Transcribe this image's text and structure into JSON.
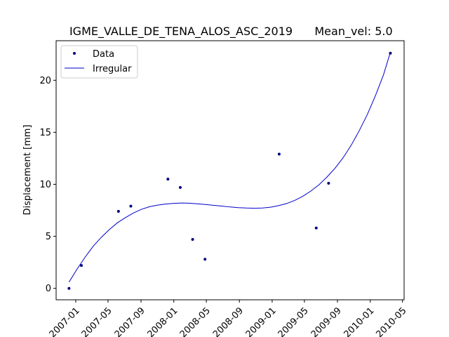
{
  "chart_data": {
    "type": "scatter",
    "title": "IGME_VALLE_DE_TENA_ALOS_ASC_2019",
    "subtitle": "Mean_vel: 5.0",
    "xlabel": "",
    "ylabel": "Displacement [mm]",
    "xlim": [
      "2006-10-20",
      "2010-05-07"
    ],
    "ylim": [
      -1.1,
      23.8
    ],
    "xticks": [
      "2007-01",
      "2007-05",
      "2007-09",
      "2008-01",
      "2008-05",
      "2008-09",
      "2009-01",
      "2009-05",
      "2009-09",
      "2010-01",
      "2010-05"
    ],
    "yticks": [
      0,
      5,
      10,
      15,
      20
    ],
    "grid": false,
    "legend": {
      "placement": "top-left",
      "entries": [
        "Data",
        "Irregular"
      ]
    },
    "colors": {
      "data": "#00007f",
      "line": "#0000cd",
      "axes": "#000000"
    },
    "series": [
      {
        "name": "Data",
        "marker": "point",
        "x": [
          "2006-12-07",
          "2007-01-22",
          "2007-06-09",
          "2007-07-25",
          "2007-12-10",
          "2008-01-25",
          "2008-03-11",
          "2008-04-26",
          "2009-01-27",
          "2009-06-14",
          "2009-07-30",
          "2010-03-17"
        ],
        "y": [
          0.0,
          2.2,
          7.4,
          7.9,
          10.5,
          9.7,
          4.7,
          2.8,
          12.9,
          5.8,
          10.1,
          22.6
        ]
      },
      {
        "name": "Irregular",
        "marker": "line",
        "x": [
          "2006-12-07",
          "2007-01-06",
          "2007-02-05",
          "2007-03-07",
          "2007-04-06",
          "2007-05-06",
          "2007-06-05",
          "2007-07-05",
          "2007-08-04",
          "2007-09-03",
          "2007-10-03",
          "2007-11-02",
          "2007-12-02",
          "2008-01-01",
          "2008-01-31",
          "2008-03-01",
          "2008-03-31",
          "2008-04-30",
          "2008-05-30",
          "2008-06-29",
          "2008-07-29",
          "2008-08-28",
          "2008-09-27",
          "2008-10-27",
          "2008-11-26",
          "2008-12-26",
          "2009-01-25",
          "2009-02-24",
          "2009-03-26",
          "2009-04-25",
          "2009-05-25",
          "2009-06-24",
          "2009-07-24",
          "2009-08-23",
          "2009-09-22",
          "2009-10-22",
          "2009-11-21",
          "2009-12-21",
          "2010-01-20",
          "2010-02-19",
          "2010-03-17"
        ],
        "y": [
          0.6,
          1.85,
          3.0,
          4.05,
          4.9,
          5.65,
          6.3,
          6.8,
          7.25,
          7.6,
          7.85,
          8.0,
          8.1,
          8.17,
          8.2,
          8.18,
          8.12,
          8.05,
          7.98,
          7.9,
          7.82,
          7.76,
          7.72,
          7.7,
          7.72,
          7.8,
          7.95,
          8.15,
          8.45,
          8.85,
          9.35,
          9.95,
          10.7,
          11.55,
          12.55,
          13.75,
          15.15,
          16.7,
          18.5,
          20.5,
          22.7
        ]
      }
    ]
  }
}
